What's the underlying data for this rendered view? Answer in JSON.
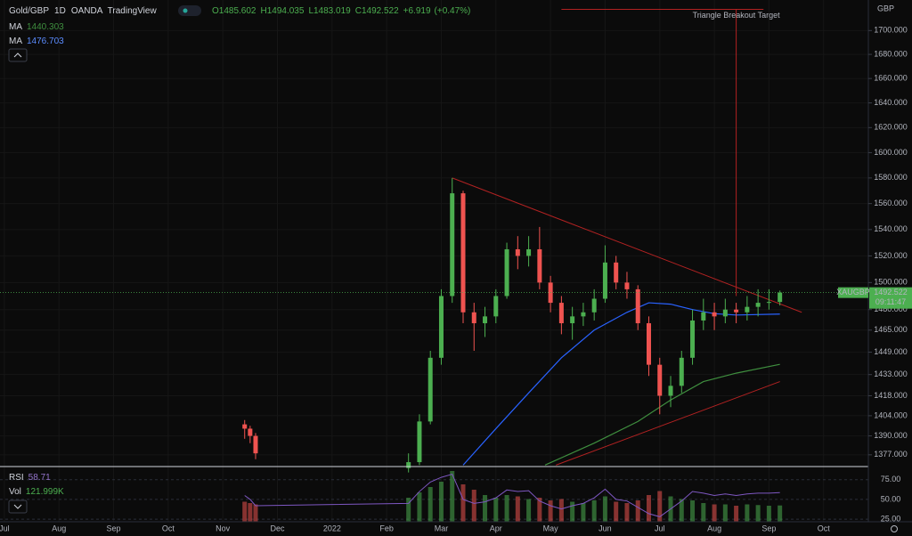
{
  "chart_data": {
    "type": "candlestick",
    "title": "Gold/GBP",
    "interval": "1D",
    "exchange": "OANDA",
    "source": "TradingView",
    "ohlc": [
      {
        "value": 1485.602,
        "label": "O1485.602"
      },
      {
        "value": 1494.035,
        "label": "H1494.035"
      },
      {
        "value": 1483.019,
        "label": "L1483.019"
      },
      {
        "value": 1492.522,
        "label": "C1492.522"
      }
    ],
    "change": {
      "value": 6.919,
      "label": "+6.919"
    },
    "change_pct": {
      "value": 0.47,
      "label": "(+0.47%)"
    },
    "currency": "GBP",
    "log": true,
    "grid": true,
    "up_color": "#4caf50",
    "down_color": "#ef5350",
    "xlim": [
      -0.08,
      15.82
    ],
    "xticks": [
      {
        "value": 0,
        "label": "Jul"
      },
      {
        "value": 1,
        "label": "Aug"
      },
      {
        "value": 2,
        "label": "Sep"
      },
      {
        "value": 3,
        "label": "Oct"
      },
      {
        "value": 4,
        "label": "Nov"
      },
      {
        "value": 5,
        "label": "Dec"
      },
      {
        "value": 6,
        "label": "2022"
      },
      {
        "value": 7,
        "label": "Feb"
      },
      {
        "value": 8,
        "label": "Mar"
      },
      {
        "value": 9,
        "label": "Apr"
      },
      {
        "value": 10,
        "label": "May"
      },
      {
        "value": 11,
        "label": "Jun"
      },
      {
        "value": 12,
        "label": "Jul"
      },
      {
        "value": 13,
        "label": "Aug"
      },
      {
        "value": 14,
        "label": "Sep"
      },
      {
        "value": 15,
        "label": "Oct"
      }
    ],
    "ylim": [
      1369,
      1726
    ],
    "yticks": [
      {
        "value": 1377,
        "label": "1377.000"
      },
      {
        "value": 1390,
        "label": "1390.000"
      },
      {
        "value": 1404,
        "label": "1404.000"
      },
      {
        "value": 1418,
        "label": "1418.000"
      },
      {
        "value": 1433,
        "label": "1433.000"
      },
      {
        "value": 1449,
        "label": "1449.000"
      },
      {
        "value": 1465,
        "label": "1465.000"
      },
      {
        "value": 1480,
        "label": "1480.000"
      },
      {
        "value": 1500,
        "label": "1500.000"
      },
      {
        "value": 1520,
        "label": "1520.000"
      },
      {
        "value": 1540,
        "label": "1540.000"
      },
      {
        "value": 1560,
        "label": "1560.000"
      },
      {
        "value": 1580,
        "label": "1580.000"
      },
      {
        "value": 1600,
        "label": "1600.000"
      },
      {
        "value": 1620,
        "label": "1620.000"
      },
      {
        "value": 1640,
        "label": "1640.000"
      },
      {
        "value": 1660,
        "label": "1660.000"
      },
      {
        "value": 1680,
        "label": "1680.000"
      },
      {
        "value": 1700,
        "label": "1700.000"
      }
    ],
    "x": [
      4.4,
      4.5,
      4.6,
      7.4,
      7.6,
      7.8,
      8.0,
      8.2,
      8.4,
      8.6,
      8.8,
      9.0,
      9.2,
      9.4,
      9.6,
      9.8,
      10.0,
      10.2,
      10.4,
      10.6,
      10.8,
      11.0,
      11.2,
      11.4,
      11.6,
      11.8,
      12.0,
      12.2,
      12.4,
      12.6,
      12.8,
      13.0,
      13.2,
      13.4,
      13.6,
      13.8,
      14.0,
      14.2
    ],
    "open": [
      1398,
      1395,
      1390,
      1368,
      1372,
      1400,
      1445,
      1490,
      1568,
      1478,
      1470,
      1475,
      1490,
      1525,
      1520,
      1525,
      1500,
      1485,
      1470,
      1475,
      1478,
      1488,
      1515,
      1500,
      1495,
      1470,
      1440,
      1418,
      1425,
      1445,
      1472,
      1478,
      1475,
      1480,
      1478,
      1482,
      1485,
      1485.602
    ],
    "high": [
      1401,
      1397,
      1392,
      1378,
      1405,
      1450,
      1495,
      1580,
      1570,
      1485,
      1482,
      1495,
      1530,
      1535,
      1535,
      1542,
      1505,
      1490,
      1482,
      1485,
      1495,
      1528,
      1520,
      1508,
      1498,
      1475,
      1445,
      1432,
      1450,
      1480,
      1488,
      1485,
      1488,
      1485,
      1490,
      1495,
      1495,
      1494.035
    ],
    "low": [
      1388,
      1385,
      1374,
      1365,
      1370,
      1398,
      1440,
      1485,
      1470,
      1450,
      1460,
      1470,
      1488,
      1510,
      1512,
      1495,
      1478,
      1462,
      1458,
      1468,
      1472,
      1485,
      1495,
      1488,
      1465,
      1432,
      1405,
      1410,
      1420,
      1440,
      1465,
      1465,
      1470,
      1470,
      1472,
      1475,
      1480,
      1483.019
    ],
    "close": [
      1395,
      1390,
      1378,
      1372,
      1400,
      1445,
      1490,
      1568,
      1478,
      1470,
      1475,
      1490,
      1525,
      1520,
      1525,
      1500,
      1485,
      1470,
      1475,
      1478,
      1488,
      1515,
      1500,
      1495,
      1470,
      1440,
      1418,
      1425,
      1445,
      1472,
      1478,
      1475,
      1480,
      1478,
      1482,
      1485,
      1485.602,
      1492.522
    ],
    "moving_averages": [
      {
        "name": "MA",
        "value": 1440.303,
        "color": "#3f8f3f",
        "x": [
          9.9,
          10.8,
          11.6,
          12.2,
          12.8,
          13.4,
          14.2
        ],
        "values": [
          1370,
          1385,
          1400,
          1415,
          1428,
          1434,
          1440.303
        ]
      },
      {
        "name": "MA",
        "value": 1476.703,
        "color": "#2962ff",
        "x": [
          8.4,
          9.0,
          9.6,
          10.2,
          10.8,
          11.4,
          11.8,
          12.2,
          12.6,
          13.0,
          13.4,
          14.2
        ],
        "values": [
          1370,
          1395,
          1420,
          1445,
          1465,
          1478,
          1485,
          1484,
          1480,
          1477,
          1476,
          1476.703
        ]
      }
    ],
    "trendlines": [
      {
        "color": "#b22222",
        "x": [
          8.2,
          14.6
        ],
        "values": [
          1580,
          1478
        ]
      },
      {
        "color": "#b22222",
        "x": [
          10.1,
          14.2
        ],
        "values": [
          1370,
          1428
        ]
      }
    ],
    "target": {
      "label": "Triangle Breakout Target",
      "color": "#b22222",
      "x": [
        13.4,
        13.4
      ],
      "values": [
        1490,
        1718
      ],
      "span_x": [
        10.2,
        13.9
      ]
    },
    "last_price": {
      "symbol": "XAUGBP",
      "value": 1492.522,
      "countdown": "09:11:47"
    },
    "indicators": {
      "rsi": {
        "name": "RSI",
        "value": 58.71,
        "color": "#7e57c2",
        "ylim": [
          21.7,
          89.4
        ],
        "yticks": [
          {
            "value": 25,
            "label": "25.00"
          },
          {
            "value": 50,
            "label": "50.00"
          },
          {
            "value": 75,
            "label": "75.00"
          }
        ],
        "values": [
          55,
          50,
          42,
          45,
          60,
          72,
          78,
          82,
          50,
          45,
          47,
          52,
          62,
          60,
          61,
          48,
          42,
          38,
          42,
          45,
          52,
          63,
          50,
          48,
          40,
          32,
          28,
          38,
          48,
          60,
          58,
          55,
          57,
          55,
          57,
          58,
          58,
          58.71
        ]
      },
      "volume": {
        "name": "Vol",
        "value": {
          "value": 121.999,
          "label": "121.999K"
        },
        "ylim": [
          0,
          400
        ],
        "values": [
          150,
          140,
          130,
          180,
          220,
          260,
          300,
          380,
          280,
          240,
          200,
          180,
          200,
          190,
          170,
          180,
          160,
          170,
          150,
          140,
          160,
          190,
          150,
          140,
          160,
          200,
          230,
          190,
          170,
          160,
          140,
          130,
          130,
          120,
          130,
          125,
          120,
          121.999
        ]
      }
    }
  }
}
